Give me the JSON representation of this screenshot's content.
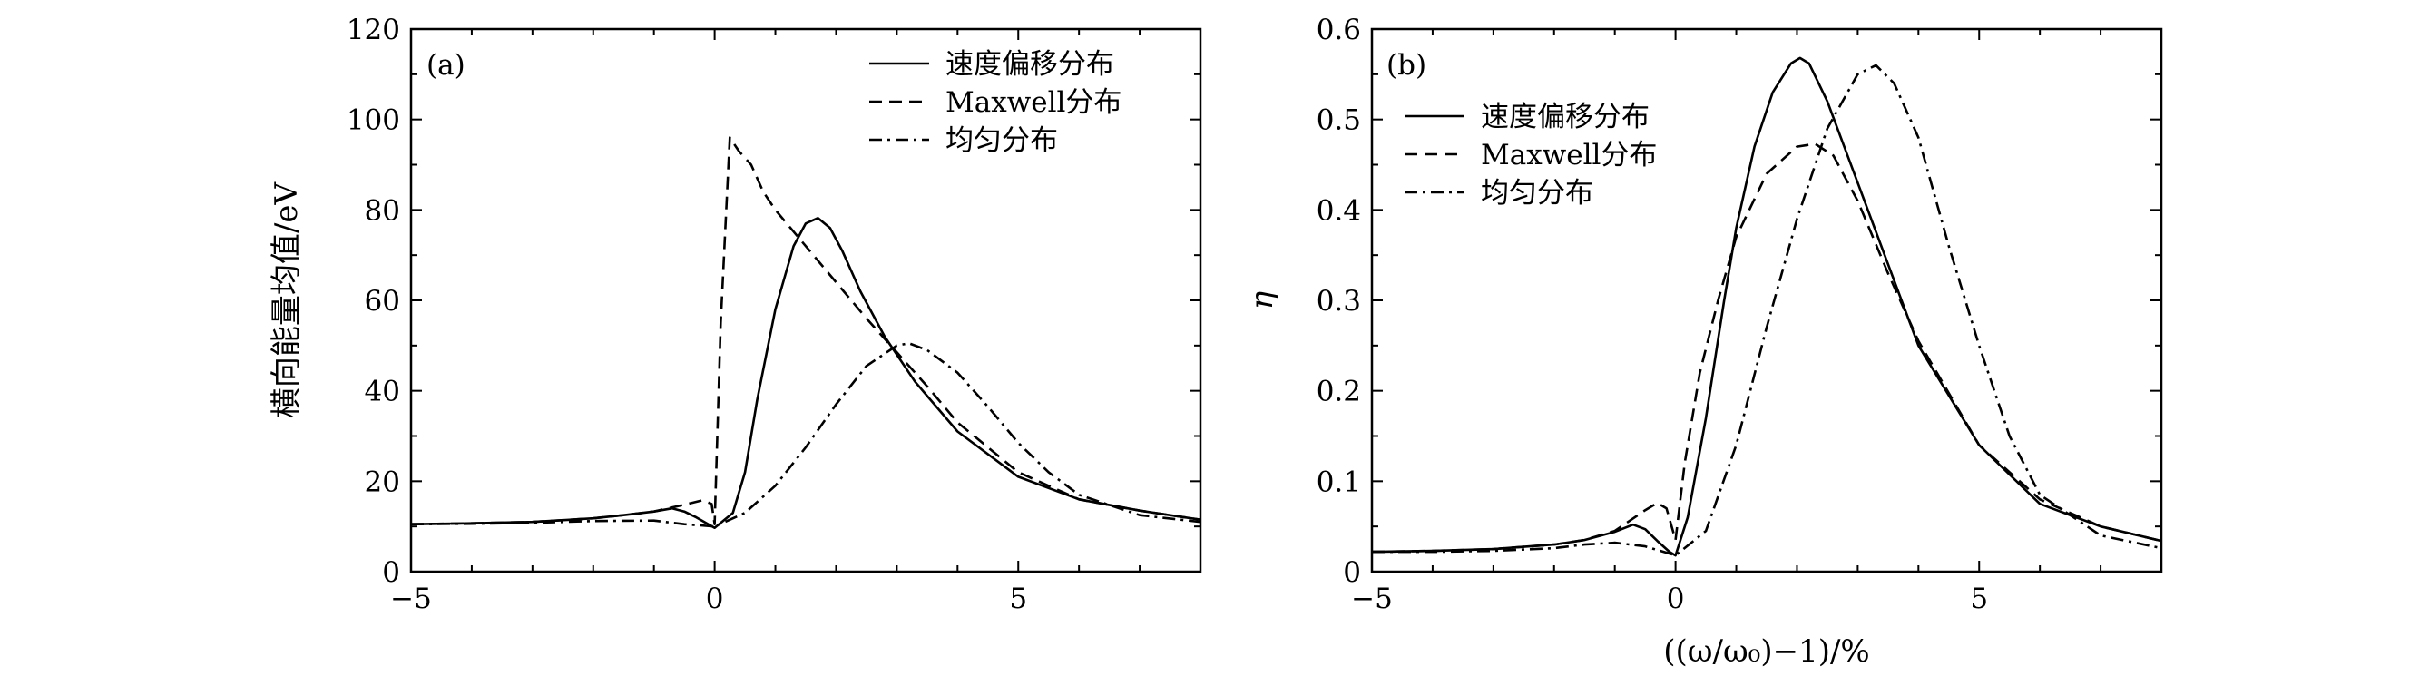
{
  "chart_data": [
    {
      "type": "line",
      "panel_label": "(a)",
      "xlabel": "",
      "ylabel": "横向能量均值/eV",
      "xlim": [
        -5,
        8
      ],
      "ylim": [
        0,
        120
      ],
      "xticks": [
        -5,
        0,
        5
      ],
      "xtick_labels": [
        "−5",
        "0",
        "5"
      ],
      "yticks": [
        0,
        20,
        40,
        60,
        80,
        100,
        120
      ],
      "ytick_labels": [
        "0",
        "20",
        "40",
        "60",
        "80",
        "100",
        "120"
      ],
      "legend_position": "top-right",
      "series": [
        {
          "name": "速度偏移分布",
          "style": "solid",
          "x": [
            -5,
            -4,
            -3,
            -2,
            -1.5,
            -1,
            -0.7,
            -0.5,
            -0.3,
            0,
            0.3,
            0.5,
            0.7,
            1.0,
            1.3,
            1.5,
            1.7,
            1.9,
            2.1,
            2.4,
            2.8,
            3.3,
            4,
            5,
            6,
            7,
            8
          ],
          "y": [
            10.5,
            10.7,
            11.0,
            11.8,
            12.5,
            13.3,
            14.0,
            13.3,
            12.0,
            9.7,
            13.0,
            22.0,
            38.0,
            58.0,
            72.0,
            77.0,
            78.2,
            76.0,
            71.0,
            62.0,
            52.0,
            42.0,
            31.0,
            21.0,
            16.0,
            13.5,
            11.5
          ]
        },
        {
          "name": "Maxwell分布",
          "style": "dashed",
          "x": [
            -5,
            -4,
            -3,
            -2,
            -1.5,
            -1,
            -0.5,
            -0.2,
            -0.05,
            0,
            0.1,
            0.25,
            0.4,
            0.6,
            0.8,
            1.0,
            1.5,
            2.0,
            2.5,
            3.0,
            3.5,
            4,
            5,
            6,
            7,
            8
          ],
          "y": [
            10.5,
            10.7,
            11.0,
            11.8,
            12.5,
            13.3,
            14.8,
            15.8,
            15.0,
            10.5,
            55.0,
            96.0,
            93.0,
            90.0,
            84.0,
            80.0,
            72.0,
            64.0,
            56.0,
            48.5,
            41.0,
            33.0,
            22.0,
            16.0,
            13.5,
            11.5
          ]
        },
        {
          "name": "均匀分布",
          "style": "dashdot",
          "x": [
            -5,
            -4,
            -3,
            -2,
            -1,
            -0.5,
            0,
            0.5,
            1.0,
            1.5,
            2.0,
            2.5,
            3.0,
            3.2,
            3.5,
            4.0,
            4.5,
            5,
            5.5,
            6,
            7,
            8
          ],
          "y": [
            10.5,
            10.6,
            10.8,
            11.2,
            11.3,
            10.5,
            10.0,
            13.0,
            19.0,
            27.5,
            37.0,
            45.5,
            50.0,
            50.5,
            49.0,
            44.0,
            36.5,
            28.5,
            22.0,
            17.0,
            12.5,
            11.0
          ]
        }
      ]
    },
    {
      "type": "line",
      "panel_label": "(b)",
      "xlabel": "((ω/ω₀)−1)/%",
      "ylabel": "η",
      "xlim": [
        -5,
        8
      ],
      "ylim": [
        0,
        0.6
      ],
      "xticks": [
        -5,
        0,
        5
      ],
      "xtick_labels": [
        "−5",
        "0",
        "5"
      ],
      "yticks": [
        0,
        0.1,
        0.2,
        0.3,
        0.4,
        0.5,
        0.6
      ],
      "ytick_labels": [
        "0",
        "0.1",
        "0.2",
        "0.3",
        "0.4",
        "0.5",
        "0.6"
      ],
      "legend_position": "top-left",
      "series": [
        {
          "name": "速度偏移分布",
          "style": "solid",
          "x": [
            -5,
            -4,
            -3,
            -2,
            -1.5,
            -1,
            -0.7,
            -0.5,
            -0.3,
            -0.1,
            0,
            0.2,
            0.5,
            0.8,
            1.0,
            1.3,
            1.6,
            1.9,
            2.05,
            2.2,
            2.5,
            3.0,
            3.5,
            4,
            5,
            6,
            7,
            8
          ],
          "y": [
            0.022,
            0.023,
            0.025,
            0.03,
            0.035,
            0.044,
            0.052,
            0.047,
            0.034,
            0.022,
            0.018,
            0.06,
            0.17,
            0.3,
            0.38,
            0.47,
            0.53,
            0.562,
            0.568,
            0.562,
            0.52,
            0.43,
            0.34,
            0.25,
            0.14,
            0.075,
            0.05,
            0.034
          ]
        },
        {
          "name": "Maxwell分布",
          "style": "dashed",
          "x": [
            -5,
            -4,
            -3,
            -2,
            -1.5,
            -1,
            -0.5,
            -0.3,
            -0.15,
            0,
            0.15,
            0.4,
            0.7,
            1.0,
            1.5,
            2.0,
            2.3,
            2.6,
            3.0,
            3.5,
            4,
            5,
            6,
            7,
            8
          ],
          "y": [
            0.022,
            0.023,
            0.025,
            0.03,
            0.035,
            0.045,
            0.068,
            0.076,
            0.07,
            0.035,
            0.12,
            0.22,
            0.3,
            0.37,
            0.44,
            0.47,
            0.473,
            0.46,
            0.41,
            0.33,
            0.255,
            0.14,
            0.08,
            0.05,
            0.034
          ]
        },
        {
          "name": "均匀分布",
          "style": "dashdot",
          "x": [
            -5,
            -4,
            -3,
            -2,
            -1.5,
            -1,
            -0.5,
            0,
            0.5,
            1.0,
            1.5,
            2.0,
            2.5,
            3.0,
            3.3,
            3.6,
            4.0,
            4.5,
            5,
            5.5,
            6,
            7,
            8
          ],
          "y": [
            0.022,
            0.022,
            0.023,
            0.026,
            0.03,
            0.032,
            0.028,
            0.018,
            0.045,
            0.14,
            0.27,
            0.39,
            0.49,
            0.55,
            0.56,
            0.54,
            0.48,
            0.36,
            0.25,
            0.15,
            0.085,
            0.04,
            0.026
          ]
        }
      ]
    }
  ]
}
